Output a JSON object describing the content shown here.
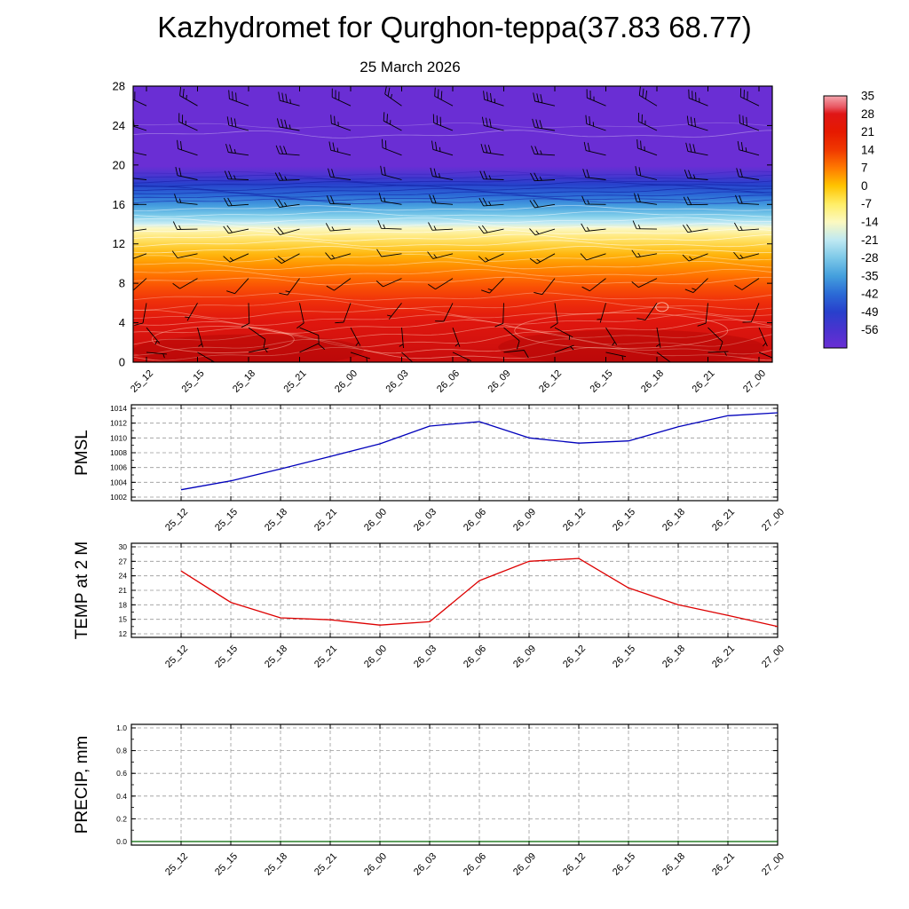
{
  "title": "Kazhydromet for Qurghon-teppa(37.83 68.77)",
  "subtitle": "25 March 2026",
  "time_labels": [
    "25_12",
    "25_15",
    "25_18",
    "25_21",
    "26_00",
    "26_03",
    "26_06",
    "26_09",
    "26_12",
    "26_15",
    "26_18",
    "26_21",
    "27_00"
  ],
  "chart_data": [
    {
      "id": "temperature-height-section",
      "type": "heatmap",
      "title": "25 March 2026",
      "xlabel": "",
      "ylabel": "",
      "x": [
        "25_12",
        "25_15",
        "25_18",
        "25_21",
        "26_00",
        "26_03",
        "26_06",
        "26_09",
        "26_12",
        "26_15",
        "26_18",
        "26_21",
        "27_00"
      ],
      "y_ticks": [
        0,
        4,
        8,
        12,
        16,
        20,
        24,
        28
      ],
      "ylim": [
        0,
        28
      ],
      "legend_position": "right-colorbar",
      "colorbar_ticks": [
        35,
        28,
        21,
        14,
        7,
        0,
        -7,
        -14,
        -21,
        -28,
        -35,
        -42,
        -49,
        -56
      ],
      "colorbar_range": [
        35,
        -63
      ],
      "colorbar_stops": [
        {
          "o": 0.0,
          "c": "#f4a6ae"
        },
        {
          "o": 0.045,
          "c": "#e85560"
        },
        {
          "o": 0.071,
          "c": "#df1616"
        },
        {
          "o": 0.143,
          "c": "#e61900"
        },
        {
          "o": 0.214,
          "c": "#f03800"
        },
        {
          "o": 0.286,
          "c": "#ff7a00"
        },
        {
          "o": 0.357,
          "c": "#ffc400"
        },
        {
          "o": 0.429,
          "c": "#ffee66"
        },
        {
          "o": 0.5,
          "c": "#fcf9c0"
        },
        {
          "o": 0.571,
          "c": "#bfe9f2"
        },
        {
          "o": 0.643,
          "c": "#7cc8e8"
        },
        {
          "o": 0.714,
          "c": "#44a0dd"
        },
        {
          "o": 0.786,
          "c": "#2b6ad6"
        },
        {
          "o": 0.857,
          "c": "#2840cc"
        },
        {
          "o": 0.929,
          "c": "#4a33cf"
        },
        {
          "o": 1.0,
          "c": "#6a2ed4"
        }
      ],
      "fill_stops": [
        {
          "o": 0.0,
          "c": "#6a2ed4"
        },
        {
          "o": 0.29,
          "c": "#6a2ed4"
        },
        {
          "o": 0.325,
          "c": "#4836d0"
        },
        {
          "o": 0.355,
          "c": "#2841cc"
        },
        {
          "o": 0.395,
          "c": "#2b6ad6"
        },
        {
          "o": 0.435,
          "c": "#47a0df"
        },
        {
          "o": 0.47,
          "c": "#7fcdea"
        },
        {
          "o": 0.497,
          "c": "#c6ecf4"
        },
        {
          "o": 0.515,
          "c": "#fbf8c4"
        },
        {
          "o": 0.545,
          "c": "#ffe97e"
        },
        {
          "o": 0.578,
          "c": "#ffd13c"
        },
        {
          "o": 0.61,
          "c": "#ffb50d"
        },
        {
          "o": 0.648,
          "c": "#ff9300"
        },
        {
          "o": 0.688,
          "c": "#ff7000"
        },
        {
          "o": 0.73,
          "c": "#f94f05"
        },
        {
          "o": 0.78,
          "c": "#ef2f0a"
        },
        {
          "o": 0.85,
          "c": "#e0170e"
        },
        {
          "o": 1.0,
          "c": "#c90d0d"
        }
      ],
      "wind_barbs": {
        "levels": [
          26,
          23.5,
          21,
          18.5,
          16,
          13.5,
          11,
          8.5,
          6,
          3.5,
          1
        ],
        "dirs": [
          [
            295,
            300,
            290,
            285,
            295,
            305,
            298,
            288,
            283,
            293,
            301,
            292,
            296
          ],
          [
            288,
            295,
            285,
            280,
            290,
            298,
            292,
            284,
            279,
            289,
            296,
            287,
            291
          ],
          [
            282,
            288,
            278,
            274,
            284,
            291,
            286,
            278,
            273,
            283,
            290,
            281,
            285
          ],
          [
            276,
            282,
            272,
            268,
            278,
            285,
            280,
            272,
            267,
            277,
            284,
            275,
            279
          ],
          [
            270,
            276,
            266,
            262,
            272,
            279,
            274,
            266,
            261,
            271,
            278,
            269,
            273
          ],
          [
            262,
            269,
            258,
            254,
            265,
            272,
            267,
            258,
            253,
            264,
            271,
            261,
            266
          ],
          [
            250,
            258,
            246,
            242,
            254,
            262,
            256,
            246,
            241,
            252,
            260,
            249,
            255
          ],
          [
            228,
            240,
            222,
            216,
            234,
            246,
            238,
            224,
            218,
            232,
            244,
            226,
            236
          ],
          [
            190,
            210,
            178,
            168,
            200,
            218,
            206,
            182,
            172,
            196,
            214,
            186,
            202
          ],
          [
            140,
            165,
            125,
            112,
            152,
            175,
            160,
            130,
            118,
            148,
            170,
            134,
            156
          ],
          [
            95,
            120,
            78,
            65,
            108,
            132,
            115,
            84,
            70,
            102,
            126,
            88,
            112
          ]
        ],
        "spds": [
          [
            30,
            25,
            32,
            35,
            28,
            24,
            30,
            34,
            31,
            26,
            29,
            33,
            30
          ],
          [
            28,
            24,
            30,
            33,
            27,
            23,
            28,
            32,
            29,
            25,
            27,
            31,
            28
          ],
          [
            25,
            22,
            27,
            30,
            24,
            21,
            26,
            29,
            26,
            22,
            25,
            28,
            25
          ],
          [
            22,
            19,
            24,
            27,
            21,
            18,
            23,
            26,
            23,
            20,
            22,
            25,
            22
          ],
          [
            20,
            17,
            21,
            24,
            19,
            16,
            20,
            23,
            20,
            17,
            19,
            22,
            20
          ],
          [
            17,
            14,
            18,
            21,
            16,
            13,
            17,
            20,
            17,
            14,
            16,
            19,
            17
          ],
          [
            14,
            11,
            15,
            18,
            13,
            10,
            14,
            17,
            14,
            11,
            13,
            16,
            14
          ],
          [
            11,
            9,
            12,
            15,
            10,
            8,
            11,
            14,
            11,
            9,
            10,
            13,
            11
          ],
          [
            9,
            7,
            10,
            12,
            8,
            6,
            9,
            11,
            9,
            7,
            8,
            10,
            9
          ],
          [
            7,
            5,
            8,
            10,
            6,
            5,
            7,
            9,
            7,
            5,
            6,
            8,
            7
          ],
          [
            6,
            5,
            7,
            8,
            5,
            4,
            6,
            8,
            6,
            5,
            5,
            7,
            6
          ]
        ]
      }
    },
    {
      "id": "pmsl",
      "type": "line",
      "ylabel": "PMSL",
      "x": [
        "25_12",
        "25_15",
        "25_18",
        "25_21",
        "26_00",
        "26_03",
        "26_06",
        "26_09",
        "26_12",
        "26_15",
        "26_18",
        "26_21",
        "27_00"
      ],
      "values": [
        1003.0,
        1004.2,
        1005.8,
        1007.5,
        1009.2,
        1011.6,
        1012.2,
        1010.0,
        1009.3,
        1009.6,
        1011.5,
        1013.0,
        1013.4
      ],
      "ylim": [
        1002,
        1014
      ],
      "y_ticks": [
        1002,
        1004,
        1006,
        1008,
        1010,
        1012,
        1014
      ],
      "y_minor_step": 1,
      "color": "#0000bb",
      "grid": true
    },
    {
      "id": "temp-2m",
      "type": "line",
      "ylabel": "TEMP at 2 M",
      "x": [
        "25_12",
        "25_15",
        "25_18",
        "25_21",
        "26_00",
        "26_03",
        "26_06",
        "26_09",
        "26_12",
        "26_15",
        "26_18",
        "26_21",
        "27_00"
      ],
      "values": [
        25.0,
        18.5,
        15.3,
        14.9,
        13.8,
        14.5,
        23.0,
        27.0,
        27.6,
        21.5,
        18.0,
        15.8,
        13.5
      ],
      "ylim": [
        12,
        30
      ],
      "y_ticks": [
        12,
        15,
        18,
        21,
        24,
        27,
        30
      ],
      "y_minor_step": 1.5,
      "color": "#dd0000",
      "grid": true
    },
    {
      "id": "precip",
      "type": "line",
      "ylabel": "PRECIP, mm",
      "x": [
        "25_12",
        "25_15",
        "25_18",
        "25_21",
        "26_00",
        "26_03",
        "26_06",
        "26_09",
        "26_12",
        "26_15",
        "26_18",
        "26_21",
        "27_00"
      ],
      "values": [
        0,
        0,
        0,
        0,
        0,
        0,
        0,
        0,
        0,
        0,
        0,
        0,
        0
      ],
      "ylim": [
        0,
        1.0
      ],
      "y_ticks": [
        0,
        0.2,
        0.4,
        0.6,
        0.8,
        1.0
      ],
      "y_tick_labels": [
        "0.0",
        "0.2",
        "0.4",
        "0.6",
        "0.8",
        "1.0"
      ],
      "y_minor_step": 0.1,
      "color": "#006600",
      "grid": true
    }
  ]
}
